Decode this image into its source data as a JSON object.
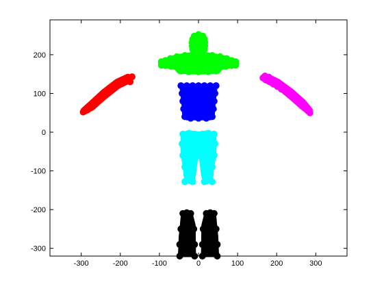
{
  "chart_data": {
    "type": "scatter",
    "title": "",
    "xlabel": "",
    "ylabel": "",
    "xlim": [
      -380,
      380
    ],
    "ylim": [
      -320,
      290
    ],
    "xticks": [
      -300,
      -200,
      -100,
      0,
      100,
      200,
      300
    ],
    "yticks": [
      -300,
      -200,
      -100,
      0,
      100,
      200
    ],
    "xtick_labels": [
      "-300",
      "-200",
      "-100",
      "0",
      "100",
      "200",
      "300"
    ],
    "ytick_labels": [
      "-300",
      "-200",
      "-100",
      "0",
      "100",
      "200"
    ],
    "grid": false,
    "legend": "none",
    "series": [
      {
        "color": "#00ff00",
        "region": "head",
        "points": [
          [
            -11,
            248
          ],
          [
            11,
            248
          ],
          [
            -15,
            240
          ],
          [
            15,
            240
          ],
          [
            -16,
            232
          ],
          [
            16,
            232
          ],
          [
            -16,
            223
          ],
          [
            16,
            223
          ],
          [
            -15,
            214
          ],
          [
            15,
            214
          ],
          [
            -12,
            206
          ],
          [
            12,
            206
          ],
          [
            -6,
            200
          ],
          [
            6,
            200
          ],
          [
            0,
            252
          ],
          [
            0,
            198
          ]
        ]
      },
      {
        "color": "#00ff00",
        "region": "shoulders",
        "points": [
          [
            -95,
            182
          ],
          [
            -85,
            185
          ],
          [
            -72,
            190
          ],
          [
            -55,
            195
          ],
          [
            -35,
            198
          ],
          [
            -15,
            200
          ],
          [
            0,
            200
          ],
          [
            15,
            200
          ],
          [
            35,
            198
          ],
          [
            55,
            195
          ],
          [
            72,
            190
          ],
          [
            85,
            185
          ],
          [
            95,
            182
          ],
          [
            -95,
            173
          ],
          [
            -85,
            172
          ],
          [
            -70,
            170
          ],
          [
            -55,
            168
          ],
          [
            -45,
            158
          ],
          [
            -25,
            156
          ],
          [
            0,
            156
          ],
          [
            25,
            156
          ],
          [
            45,
            158
          ],
          [
            55,
            168
          ],
          [
            70,
            170
          ],
          [
            85,
            172
          ],
          [
            95,
            173
          ]
        ]
      },
      {
        "color": "#0000ff",
        "region": "torso",
        "points": [
          [
            -45,
            120
          ],
          [
            -30,
            120
          ],
          [
            -15,
            120
          ],
          [
            0,
            120
          ],
          [
            15,
            120
          ],
          [
            30,
            120
          ],
          [
            45,
            120
          ],
          [
            -42,
            100
          ],
          [
            42,
            100
          ],
          [
            -40,
            80
          ],
          [
            40,
            80
          ],
          [
            -38,
            60
          ],
          [
            38,
            60
          ],
          [
            -35,
            40
          ],
          [
            35,
            40
          ],
          [
            -20,
            36
          ],
          [
            0,
            36
          ],
          [
            20,
            36
          ]
        ]
      },
      {
        "color": "#ff0000",
        "region": "left-arm",
        "points": [
          [
            -295,
            52
          ],
          [
            -285,
            57
          ],
          [
            -275,
            66
          ],
          [
            -265,
            76
          ],
          [
            -255,
            86
          ],
          [
            -245,
            96
          ],
          [
            -235,
            104
          ],
          [
            -225,
            111
          ],
          [
            -215,
            118
          ],
          [
            -205,
            124
          ],
          [
            -195,
            130
          ],
          [
            -185,
            135
          ],
          [
            -175,
            138
          ],
          [
            -170,
            143
          ],
          [
            -180,
            142
          ],
          [
            -175,
            130
          ]
        ]
      },
      {
        "color": "#ff00ff",
        "region": "right-arm",
        "points": [
          [
            165,
            140
          ],
          [
            172,
            135
          ],
          [
            182,
            130
          ],
          [
            192,
            124
          ],
          [
            202,
            118
          ],
          [
            212,
            111
          ],
          [
            222,
            105
          ],
          [
            232,
            97
          ],
          [
            242,
            89
          ],
          [
            252,
            80
          ],
          [
            262,
            71
          ],
          [
            272,
            62
          ],
          [
            280,
            55
          ],
          [
            285,
            50
          ],
          [
            170,
            145
          ],
          [
            180,
            142
          ]
        ]
      },
      {
        "color": "#00ffff",
        "region": "legs",
        "points": [
          [
            -40,
            -5
          ],
          [
            -25,
            -3
          ],
          [
            -10,
            -5
          ],
          [
            10,
            -5
          ],
          [
            25,
            -3
          ],
          [
            40,
            -5
          ],
          [
            -42,
            -30
          ],
          [
            42,
            -30
          ],
          [
            -40,
            -60
          ],
          [
            40,
            -60
          ],
          [
            -35,
            -90
          ],
          [
            35,
            -90
          ],
          [
            -30,
            -110
          ],
          [
            30,
            -110
          ],
          [
            -35,
            -128
          ],
          [
            -15,
            -128
          ],
          [
            15,
            -128
          ],
          [
            35,
            -128
          ],
          [
            -3,
            -60
          ],
          [
            3,
            -60
          ]
        ]
      },
      {
        "color": "#000000",
        "region": "feet",
        "points": [
          [
            -40,
            -210
          ],
          [
            -30,
            -208
          ],
          [
            -20,
            -210
          ],
          [
            20,
            -210
          ],
          [
            30,
            -208
          ],
          [
            40,
            -210
          ],
          [
            -45,
            -250
          ],
          [
            -12,
            -250
          ],
          [
            12,
            -250
          ],
          [
            45,
            -250
          ],
          [
            -48,
            -290
          ],
          [
            -10,
            -290
          ],
          [
            10,
            -290
          ],
          [
            48,
            -290
          ],
          [
            -48,
            -320
          ],
          [
            -10,
            -320
          ],
          [
            10,
            -320
          ],
          [
            48,
            -320
          ]
        ]
      }
    ]
  }
}
